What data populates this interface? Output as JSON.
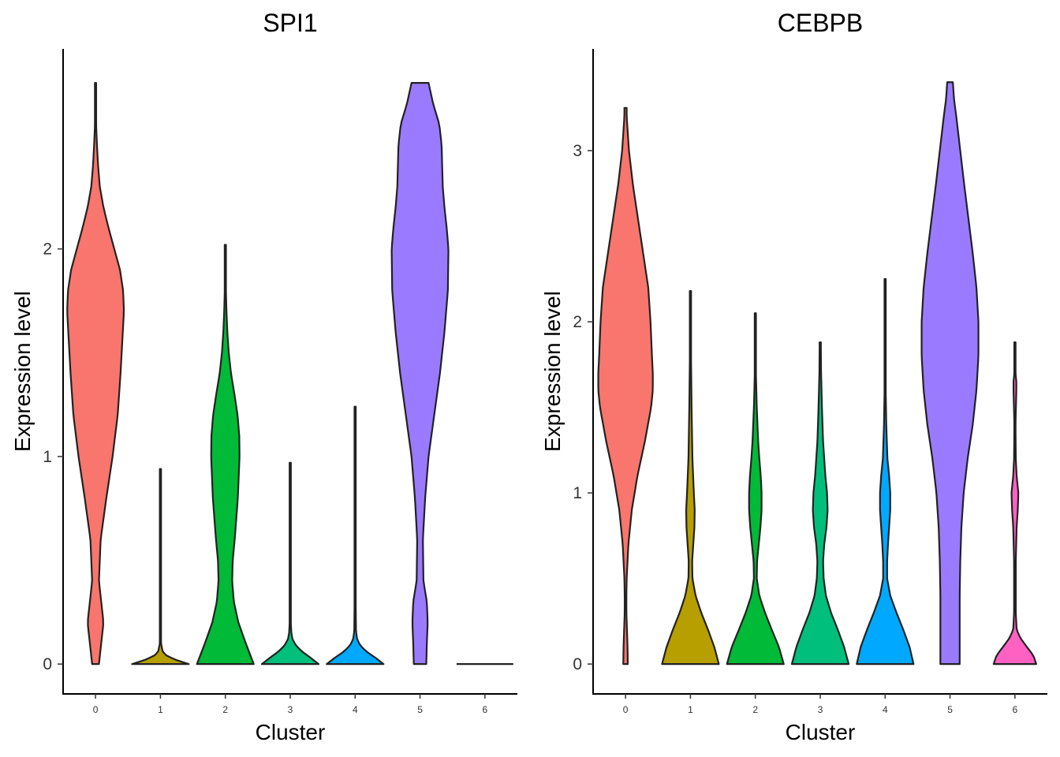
{
  "chart_data": [
    {
      "type": "violin",
      "title": "SPI1",
      "xlabel": "Cluster",
      "ylabel": "Expression level",
      "categories": [
        "0",
        "1",
        "2",
        "3",
        "4",
        "5",
        "6"
      ],
      "yticks": [
        "0",
        "1",
        "2"
      ],
      "ylim": [
        -0.14,
        2.96
      ],
      "grid": false,
      "legend": "none",
      "series": [
        {
          "cluster": "0",
          "color": "#F8766D",
          "min": 0,
          "max": 2.8,
          "profile": [
            [
              0,
              0.12
            ],
            [
              0.1,
              0.2
            ],
            [
              0.2,
              0.28
            ],
            [
              0.3,
              0.2
            ],
            [
              0.4,
              0.12
            ],
            [
              0.6,
              0.18
            ],
            [
              0.8,
              0.38
            ],
            [
              1.0,
              0.6
            ],
            [
              1.2,
              0.78
            ],
            [
              1.4,
              0.88
            ],
            [
              1.6,
              0.96
            ],
            [
              1.7,
              1.0
            ],
            [
              1.8,
              0.97
            ],
            [
              1.9,
              0.86
            ],
            [
              2.0,
              0.66
            ],
            [
              2.1,
              0.46
            ],
            [
              2.2,
              0.28
            ],
            [
              2.3,
              0.15
            ],
            [
              2.4,
              0.09
            ],
            [
              2.5,
              0.05
            ],
            [
              2.6,
              0.02
            ],
            [
              2.7,
              0.01
            ],
            [
              2.8,
              0.01
            ]
          ]
        },
        {
          "cluster": "1",
          "color": "#B79F00",
          "min": 0,
          "max": 0.94,
          "profile": [
            [
              0,
              1.0
            ],
            [
              0.02,
              0.55
            ],
            [
              0.04,
              0.22
            ],
            [
              0.06,
              0.08
            ],
            [
              0.1,
              0.02
            ],
            [
              0.3,
              0.01
            ],
            [
              0.6,
              0.01
            ],
            [
              0.94,
              0.01
            ]
          ]
        },
        {
          "cluster": "2",
          "color": "#00BA38",
          "min": 0,
          "max": 2.02,
          "profile": [
            [
              0,
              1.0
            ],
            [
              0.1,
              0.72
            ],
            [
              0.2,
              0.46
            ],
            [
              0.3,
              0.3
            ],
            [
              0.4,
              0.24
            ],
            [
              0.5,
              0.26
            ],
            [
              0.6,
              0.33
            ],
            [
              0.8,
              0.44
            ],
            [
              1.0,
              0.5
            ],
            [
              1.1,
              0.49
            ],
            [
              1.2,
              0.43
            ],
            [
              1.3,
              0.32
            ],
            [
              1.4,
              0.2
            ],
            [
              1.5,
              0.12
            ],
            [
              1.6,
              0.07
            ],
            [
              1.7,
              0.04
            ],
            [
              1.8,
              0.02
            ],
            [
              2.0,
              0.01
            ]
          ]
        },
        {
          "cluster": "3",
          "color": "#00BF7D",
          "min": 0,
          "max": 0.97,
          "profile": [
            [
              0,
              1.0
            ],
            [
              0.03,
              0.72
            ],
            [
              0.06,
              0.42
            ],
            [
              0.09,
              0.2
            ],
            [
              0.12,
              0.08
            ],
            [
              0.15,
              0.04
            ],
            [
              0.2,
              0.02
            ],
            [
              0.5,
              0.01
            ],
            [
              0.97,
              0.01
            ]
          ]
        },
        {
          "cluster": "4",
          "color": "#00A9FF",
          "min": 0,
          "max": 1.24,
          "profile": [
            [
              0,
              1.0
            ],
            [
              0.03,
              0.72
            ],
            [
              0.06,
              0.4
            ],
            [
              0.09,
              0.18
            ],
            [
              0.12,
              0.07
            ],
            [
              0.16,
              0.03
            ],
            [
              0.3,
              0.02
            ],
            [
              0.6,
              0.02
            ],
            [
              0.9,
              0.01
            ],
            [
              1.24,
              0.01
            ]
          ]
        },
        {
          "cluster": "5",
          "color": "#9A7BFF",
          "min": 0,
          "max": 2.8,
          "profile": [
            [
              0,
              0.22
            ],
            [
              0.1,
              0.24
            ],
            [
              0.2,
              0.27
            ],
            [
              0.3,
              0.24
            ],
            [
              0.4,
              0.12
            ],
            [
              0.6,
              0.1
            ],
            [
              0.8,
              0.18
            ],
            [
              1.0,
              0.3
            ],
            [
              1.2,
              0.5
            ],
            [
              1.4,
              0.7
            ],
            [
              1.6,
              0.86
            ],
            [
              1.8,
              0.98
            ],
            [
              2.0,
              1.0
            ],
            [
              2.1,
              0.94
            ],
            [
              2.2,
              0.86
            ],
            [
              2.3,
              0.8
            ],
            [
              2.4,
              0.78
            ],
            [
              2.5,
              0.76
            ],
            [
              2.6,
              0.68
            ],
            [
              2.7,
              0.46
            ],
            [
              2.8,
              0.3
            ]
          ]
        },
        {
          "cluster": "6",
          "color": "#FF61C3",
          "min": 0,
          "max": 0,
          "profile": [
            [
              0,
              1.0
            ]
          ]
        }
      ]
    },
    {
      "type": "violin",
      "title": "CEBPB",
      "xlabel": "Cluster",
      "ylabel": "Expression level",
      "categories": [
        "0",
        "1",
        "2",
        "3",
        "4",
        "5",
        "6"
      ],
      "yticks": [
        "0",
        "1",
        "2",
        "3"
      ],
      "ylim": [
        -0.17,
        3.59
      ],
      "grid": false,
      "legend": "none",
      "series": [
        {
          "cluster": "0",
          "color": "#F8766D",
          "min": 0,
          "max": 3.25,
          "profile": [
            [
              0,
              0.08
            ],
            [
              0.1,
              0.07
            ],
            [
              0.2,
              0.05
            ],
            [
              0.3,
              0.03
            ],
            [
              0.4,
              0.03
            ],
            [
              0.5,
              0.04
            ],
            [
              0.7,
              0.1
            ],
            [
              0.9,
              0.22
            ],
            [
              1.1,
              0.42
            ],
            [
              1.3,
              0.68
            ],
            [
              1.5,
              0.9
            ],
            [
              1.6,
              0.96
            ],
            [
              1.7,
              0.96
            ],
            [
              1.8,
              0.93
            ],
            [
              2.0,
              0.88
            ],
            [
              2.2,
              0.8
            ],
            [
              2.4,
              0.62
            ],
            [
              2.6,
              0.44
            ],
            [
              2.8,
              0.26
            ],
            [
              3.0,
              0.12
            ],
            [
              3.2,
              0.04
            ],
            [
              3.25,
              0.04
            ]
          ]
        },
        {
          "cluster": "1",
          "color": "#B79F00",
          "min": 0,
          "max": 2.18,
          "profile": [
            [
              0,
              1.0
            ],
            [
              0.1,
              0.84
            ],
            [
              0.2,
              0.62
            ],
            [
              0.3,
              0.38
            ],
            [
              0.4,
              0.18
            ],
            [
              0.5,
              0.07
            ],
            [
              0.6,
              0.06
            ],
            [
              0.7,
              0.1
            ],
            [
              0.8,
              0.14
            ],
            [
              0.9,
              0.15
            ],
            [
              1.0,
              0.12
            ],
            [
              1.2,
              0.07
            ],
            [
              1.5,
              0.04
            ],
            [
              1.8,
              0.02
            ],
            [
              2.18,
              0.02
            ]
          ]
        },
        {
          "cluster": "2",
          "color": "#00BA38",
          "min": 0,
          "max": 2.05,
          "profile": [
            [
              0,
              1.0
            ],
            [
              0.1,
              0.83
            ],
            [
              0.2,
              0.58
            ],
            [
              0.3,
              0.34
            ],
            [
              0.4,
              0.14
            ],
            [
              0.5,
              0.05
            ],
            [
              0.6,
              0.06
            ],
            [
              0.7,
              0.12
            ],
            [
              0.8,
              0.18
            ],
            [
              0.9,
              0.22
            ],
            [
              1.0,
              0.22
            ],
            [
              1.1,
              0.19
            ],
            [
              1.2,
              0.14
            ],
            [
              1.3,
              0.1
            ],
            [
              1.5,
              0.05
            ],
            [
              1.7,
              0.02
            ],
            [
              2.05,
              0.02
            ]
          ]
        },
        {
          "cluster": "3",
          "color": "#00BF7D",
          "min": 0,
          "max": 1.88,
          "profile": [
            [
              0,
              1.0
            ],
            [
              0.1,
              0.84
            ],
            [
              0.2,
              0.62
            ],
            [
              0.3,
              0.38
            ],
            [
              0.4,
              0.2
            ],
            [
              0.5,
              0.12
            ],
            [
              0.6,
              0.1
            ],
            [
              0.7,
              0.14
            ],
            [
              0.8,
              0.22
            ],
            [
              0.9,
              0.26
            ],
            [
              1.0,
              0.24
            ],
            [
              1.1,
              0.18
            ],
            [
              1.2,
              0.14
            ],
            [
              1.3,
              0.1
            ],
            [
              1.5,
              0.06
            ],
            [
              1.7,
              0.03
            ],
            [
              1.88,
              0.02
            ]
          ]
        },
        {
          "cluster": "4",
          "color": "#00A9FF",
          "min": 0,
          "max": 2.25,
          "profile": [
            [
              0,
              1.0
            ],
            [
              0.1,
              0.86
            ],
            [
              0.2,
              0.64
            ],
            [
              0.3,
              0.4
            ],
            [
              0.4,
              0.18
            ],
            [
              0.5,
              0.07
            ],
            [
              0.6,
              0.07
            ],
            [
              0.7,
              0.1
            ],
            [
              0.8,
              0.14
            ],
            [
              0.9,
              0.18
            ],
            [
              1.0,
              0.18
            ],
            [
              1.1,
              0.14
            ],
            [
              1.2,
              0.08
            ],
            [
              1.4,
              0.04
            ],
            [
              1.6,
              0.02
            ],
            [
              2.25,
              0.02
            ]
          ]
        },
        {
          "cluster": "5",
          "color": "#9A7BFF",
          "min": 0,
          "max": 3.4,
          "profile": [
            [
              0,
              0.34
            ],
            [
              0.2,
              0.34
            ],
            [
              0.4,
              0.34
            ],
            [
              0.6,
              0.36
            ],
            [
              0.8,
              0.4
            ],
            [
              1.0,
              0.48
            ],
            [
              1.2,
              0.62
            ],
            [
              1.4,
              0.8
            ],
            [
              1.6,
              0.93
            ],
            [
              1.8,
              1.0
            ],
            [
              2.0,
              1.0
            ],
            [
              2.2,
              0.93
            ],
            [
              2.4,
              0.8
            ],
            [
              2.6,
              0.65
            ],
            [
              2.8,
              0.5
            ],
            [
              3.0,
              0.36
            ],
            [
              3.2,
              0.22
            ],
            [
              3.3,
              0.14
            ],
            [
              3.4,
              0.1
            ]
          ]
        },
        {
          "cluster": "6",
          "color": "#FF61C3",
          "min": 0,
          "max": 1.88,
          "profile": [
            [
              0,
              0.75
            ],
            [
              0.05,
              0.65
            ],
            [
              0.1,
              0.42
            ],
            [
              0.15,
              0.2
            ],
            [
              0.2,
              0.06
            ],
            [
              0.3,
              0.03
            ],
            [
              0.6,
              0.03
            ],
            [
              0.8,
              0.06
            ],
            [
              0.9,
              0.1
            ],
            [
              1.0,
              0.12
            ],
            [
              1.1,
              0.06
            ],
            [
              1.2,
              0.03
            ],
            [
              1.4,
              0.02
            ],
            [
              1.6,
              0.05
            ],
            [
              1.65,
              0.05
            ],
            [
              1.7,
              0.02
            ],
            [
              1.88,
              0.02
            ]
          ]
        }
      ]
    }
  ]
}
